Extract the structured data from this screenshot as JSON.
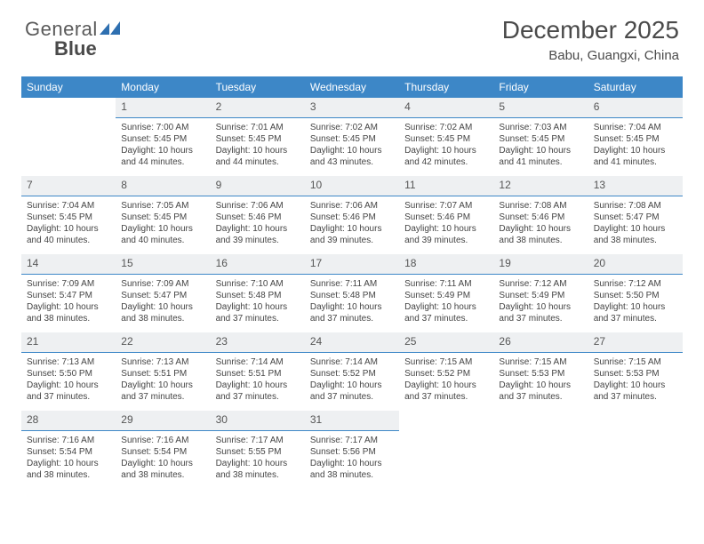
{
  "logo": {
    "text1": "General",
    "text2": "Blue"
  },
  "header": {
    "title": "December 2025",
    "location": "Babu, Guangxi, China"
  },
  "colors": {
    "header_bg": "#3d87c7",
    "header_fg": "#ffffff",
    "daynum_bg": "#eef0f2",
    "rule": "#3d87c7",
    "page_bg": "#ffffff",
    "text": "#444444"
  },
  "dayLabels": [
    "Sunday",
    "Monday",
    "Tuesday",
    "Wednesday",
    "Thursday",
    "Friday",
    "Saturday"
  ],
  "weeks": [
    [
      {
        "n": "",
        "sr": "",
        "ss": "",
        "dl": ""
      },
      {
        "n": "1",
        "sr": "7:00 AM",
        "ss": "5:45 PM",
        "dl": "10 hours and 44 minutes."
      },
      {
        "n": "2",
        "sr": "7:01 AM",
        "ss": "5:45 PM",
        "dl": "10 hours and 44 minutes."
      },
      {
        "n": "3",
        "sr": "7:02 AM",
        "ss": "5:45 PM",
        "dl": "10 hours and 43 minutes."
      },
      {
        "n": "4",
        "sr": "7:02 AM",
        "ss": "5:45 PM",
        "dl": "10 hours and 42 minutes."
      },
      {
        "n": "5",
        "sr": "7:03 AM",
        "ss": "5:45 PM",
        "dl": "10 hours and 41 minutes."
      },
      {
        "n": "6",
        "sr": "7:04 AM",
        "ss": "5:45 PM",
        "dl": "10 hours and 41 minutes."
      }
    ],
    [
      {
        "n": "7",
        "sr": "7:04 AM",
        "ss": "5:45 PM",
        "dl": "10 hours and 40 minutes."
      },
      {
        "n": "8",
        "sr": "7:05 AM",
        "ss": "5:45 PM",
        "dl": "10 hours and 40 minutes."
      },
      {
        "n": "9",
        "sr": "7:06 AM",
        "ss": "5:46 PM",
        "dl": "10 hours and 39 minutes."
      },
      {
        "n": "10",
        "sr": "7:06 AM",
        "ss": "5:46 PM",
        "dl": "10 hours and 39 minutes."
      },
      {
        "n": "11",
        "sr": "7:07 AM",
        "ss": "5:46 PM",
        "dl": "10 hours and 39 minutes."
      },
      {
        "n": "12",
        "sr": "7:08 AM",
        "ss": "5:46 PM",
        "dl": "10 hours and 38 minutes."
      },
      {
        "n": "13",
        "sr": "7:08 AM",
        "ss": "5:47 PM",
        "dl": "10 hours and 38 minutes."
      }
    ],
    [
      {
        "n": "14",
        "sr": "7:09 AM",
        "ss": "5:47 PM",
        "dl": "10 hours and 38 minutes."
      },
      {
        "n": "15",
        "sr": "7:09 AM",
        "ss": "5:47 PM",
        "dl": "10 hours and 38 minutes."
      },
      {
        "n": "16",
        "sr": "7:10 AM",
        "ss": "5:48 PM",
        "dl": "10 hours and 37 minutes."
      },
      {
        "n": "17",
        "sr": "7:11 AM",
        "ss": "5:48 PM",
        "dl": "10 hours and 37 minutes."
      },
      {
        "n": "18",
        "sr": "7:11 AM",
        "ss": "5:49 PM",
        "dl": "10 hours and 37 minutes."
      },
      {
        "n": "19",
        "sr": "7:12 AM",
        "ss": "5:49 PM",
        "dl": "10 hours and 37 minutes."
      },
      {
        "n": "20",
        "sr": "7:12 AM",
        "ss": "5:50 PM",
        "dl": "10 hours and 37 minutes."
      }
    ],
    [
      {
        "n": "21",
        "sr": "7:13 AM",
        "ss": "5:50 PM",
        "dl": "10 hours and 37 minutes."
      },
      {
        "n": "22",
        "sr": "7:13 AM",
        "ss": "5:51 PM",
        "dl": "10 hours and 37 minutes."
      },
      {
        "n": "23",
        "sr": "7:14 AM",
        "ss": "5:51 PM",
        "dl": "10 hours and 37 minutes."
      },
      {
        "n": "24",
        "sr": "7:14 AM",
        "ss": "5:52 PM",
        "dl": "10 hours and 37 minutes."
      },
      {
        "n": "25",
        "sr": "7:15 AM",
        "ss": "5:52 PM",
        "dl": "10 hours and 37 minutes."
      },
      {
        "n": "26",
        "sr": "7:15 AM",
        "ss": "5:53 PM",
        "dl": "10 hours and 37 minutes."
      },
      {
        "n": "27",
        "sr": "7:15 AM",
        "ss": "5:53 PM",
        "dl": "10 hours and 37 minutes."
      }
    ],
    [
      {
        "n": "28",
        "sr": "7:16 AM",
        "ss": "5:54 PM",
        "dl": "10 hours and 38 minutes."
      },
      {
        "n": "29",
        "sr": "7:16 AM",
        "ss": "5:54 PM",
        "dl": "10 hours and 38 minutes."
      },
      {
        "n": "30",
        "sr": "7:17 AM",
        "ss": "5:55 PM",
        "dl": "10 hours and 38 minutes."
      },
      {
        "n": "31",
        "sr": "7:17 AM",
        "ss": "5:56 PM",
        "dl": "10 hours and 38 minutes."
      },
      {
        "n": "",
        "sr": "",
        "ss": "",
        "dl": ""
      },
      {
        "n": "",
        "sr": "",
        "ss": "",
        "dl": ""
      },
      {
        "n": "",
        "sr": "",
        "ss": "",
        "dl": ""
      }
    ]
  ],
  "labels": {
    "sunrise": "Sunrise: ",
    "sunset": "Sunset: ",
    "daylight": "Daylight: "
  }
}
